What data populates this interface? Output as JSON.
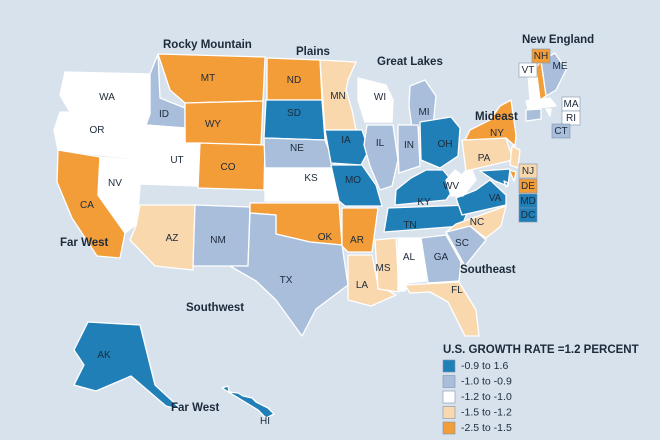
{
  "regions": [
    "Rocky Mountain",
    "Plains",
    "Great Lakes",
    "New England",
    "Mideast",
    "Far West",
    "Southwest",
    "Southeast",
    "Far West"
  ],
  "legend": {
    "title": "U.S. GROWTH RATE =1.2 PERCENT",
    "items": [
      {
        "label": "-0.9 to 1.6",
        "color": "#1f7fb6"
      },
      {
        "label": "-1.0 to -0.9",
        "color": "#a8bedb"
      },
      {
        "label": "-1.2 to -1.0",
        "color": "#ffffff"
      },
      {
        "label": "-1.5 to -1.2",
        "color": "#f9d8ae"
      },
      {
        "label": "-2.5 to -1.5",
        "color": "#f39d38"
      }
    ]
  },
  "states": [
    {
      "label": "WA",
      "color": "#ffffff"
    },
    {
      "label": "OR",
      "color": "#ffffff"
    },
    {
      "label": "CA",
      "color": "#f39d38"
    },
    {
      "label": "NV",
      "color": "#ffffff"
    },
    {
      "label": "ID",
      "color": "#a8bedb"
    },
    {
      "label": "MT",
      "color": "#f39d38"
    },
    {
      "label": "WY",
      "color": "#f39d38"
    },
    {
      "label": "UT",
      "color": "#ffffff"
    },
    {
      "label": "CO",
      "color": "#f39d38"
    },
    {
      "label": "AZ",
      "color": "#f9d8ae"
    },
    {
      "label": "NM",
      "color": "#a8bedb"
    },
    {
      "label": "ND",
      "color": "#f39d38"
    },
    {
      "label": "SD",
      "color": "#1f7fb6"
    },
    {
      "label": "NE",
      "color": "#a8bedb"
    },
    {
      "label": "KS",
      "color": "#ffffff"
    },
    {
      "label": "OK",
      "color": "#f39d38"
    },
    {
      "label": "TX",
      "color": "#a8bedb"
    },
    {
      "label": "MN",
      "color": "#f9d8ae"
    },
    {
      "label": "IA",
      "color": "#1f7fb6"
    },
    {
      "label": "MO",
      "color": "#1f7fb6"
    },
    {
      "label": "AR",
      "color": "#f39d38"
    },
    {
      "label": "LA",
      "color": "#f9d8ae"
    },
    {
      "label": "WI",
      "color": "#ffffff"
    },
    {
      "label": "MI",
      "color": "#a8bedb"
    },
    {
      "label": "IL",
      "color": "#a8bedb"
    },
    {
      "label": "IN",
      "color": "#a8bedb"
    },
    {
      "label": "OH",
      "color": "#1f7fb6"
    },
    {
      "label": "KY",
      "color": "#1f7fb6"
    },
    {
      "label": "TN",
      "color": "#1f7fb6"
    },
    {
      "label": "MS",
      "color": "#f9d8ae"
    },
    {
      "label": "AL",
      "color": "#ffffff"
    },
    {
      "label": "GA",
      "color": "#a8bedb"
    },
    {
      "label": "FL",
      "color": "#f9d8ae"
    },
    {
      "label": "SC",
      "color": "#a8bedb"
    },
    {
      "label": "NC",
      "color": "#f9d8ae"
    },
    {
      "label": "VA",
      "color": "#1f7fb6"
    },
    {
      "label": "WV",
      "color": "#ffffff"
    },
    {
      "label": "PA",
      "color": "#f9d8ae"
    },
    {
      "label": "NY",
      "color": "#f39d38"
    },
    {
      "label": "NJ",
      "color": "#f9d8ae"
    },
    {
      "label": "DE",
      "color": "#f39d38"
    },
    {
      "label": "MD",
      "color": "#1f7fb6"
    },
    {
      "label": "DC",
      "color": "#1f7fb6"
    },
    {
      "label": "ME",
      "color": "#a8bedb"
    },
    {
      "label": "NH",
      "color": "#f39d38"
    },
    {
      "label": "VT",
      "color": "#ffffff"
    },
    {
      "label": "MA",
      "color": "#ffffff"
    },
    {
      "label": "RI",
      "color": "#ffffff"
    },
    {
      "label": "CT",
      "color": "#a8bedb"
    },
    {
      "label": "AK",
      "color": "#1f7fb6"
    },
    {
      "label": "HI",
      "color": "#1f7fb6"
    }
  ]
}
